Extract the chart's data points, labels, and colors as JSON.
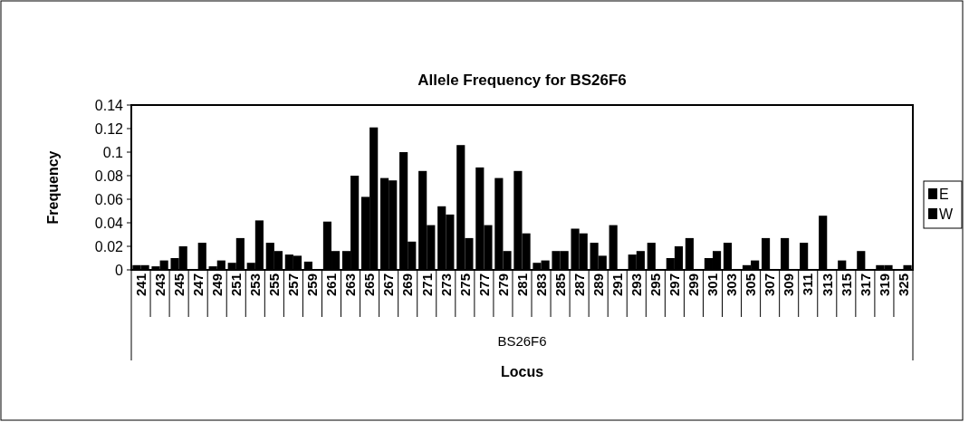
{
  "chart_data": {
    "type": "bar",
    "title": "Allele Frequency for BS26F6",
    "xlabel": "Locus",
    "ylabel": "Frequency",
    "annotations": [
      "BS26F6"
    ],
    "categories": [
      "241",
      "243",
      "245",
      "247",
      "249",
      "251",
      "253",
      "255",
      "257",
      "259",
      "261",
      "263",
      "265",
      "267",
      "269",
      "271",
      "273",
      "275",
      "277",
      "279",
      "281",
      "283",
      "285",
      "287",
      "289",
      "291",
      "293",
      "295",
      "297",
      "299",
      "301",
      "303",
      "305",
      "307",
      "309",
      "311",
      "313",
      "315",
      "317",
      "319",
      "325"
    ],
    "series": [
      {
        "name": "E",
        "color": "#000000",
        "values": [
          0.004,
          0.003,
          0.01,
          0,
          0.003,
          0.006,
          0.006,
          0.023,
          0.013,
          0.007,
          0.041,
          0.016,
          0.062,
          0.078,
          0.1,
          0.084,
          0.054,
          0.106,
          0.087,
          0.078,
          0.084,
          0.006,
          0.016,
          0.035,
          0.023,
          0.038,
          0.013,
          0.023,
          0.01,
          0.027,
          0.01,
          0.023,
          0.004,
          0.027,
          0.027,
          0.023,
          0.046,
          0.008,
          0.016,
          0.004,
          0
        ]
      },
      {
        "name": "W",
        "color": "#000000",
        "values": [
          0.004,
          0.008,
          0.02,
          0.023,
          0.008,
          0.027,
          0.042,
          0.016,
          0.012,
          0,
          0.016,
          0.08,
          0.121,
          0.076,
          0.024,
          0.038,
          0.047,
          0.027,
          0.038,
          0.016,
          0.031,
          0.008,
          0.016,
          0.031,
          0.012,
          0,
          0.016,
          0,
          0.02,
          0,
          0.016,
          0,
          0.008,
          0,
          0,
          0,
          0,
          0,
          0,
          0.004,
          0.004
        ]
      }
    ],
    "ylim": [
      0,
      0.14
    ],
    "yticks": [
      0,
      0.02,
      0.04,
      0.06,
      0.08,
      0.1,
      0.12,
      0.14
    ],
    "grid": false,
    "legend": "right"
  }
}
